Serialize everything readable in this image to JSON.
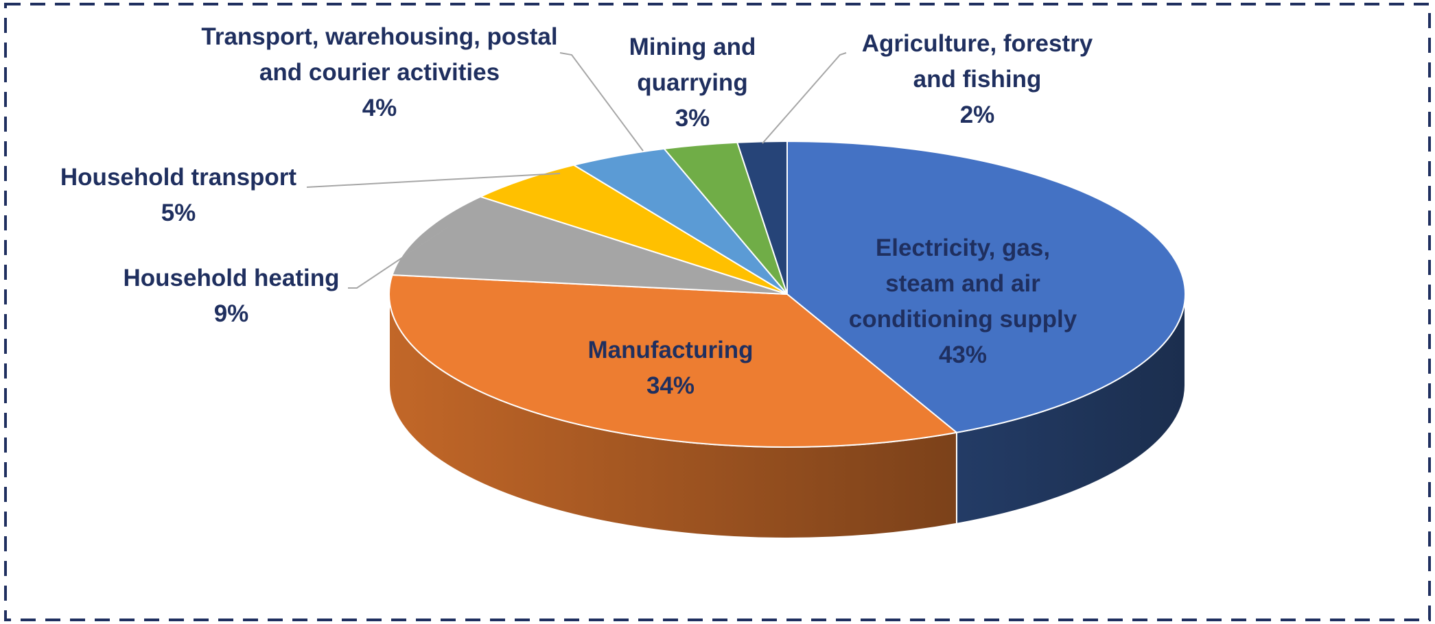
{
  "chart_data": {
    "type": "pie",
    "categories": [
      "Electricity, gas, steam and air conditioning supply",
      "Manufacturing",
      "Household heating",
      "Household transport",
      "Transport, warehousing, postal and courier activities",
      "Mining and quarrying",
      "Agriculture, forestry and fishing"
    ],
    "values": [
      43,
      34,
      9,
      5,
      4,
      3,
      2
    ],
    "value_labels": [
      "43%",
      "34%",
      "9%",
      "5%",
      "4%",
      "3%",
      "2%"
    ],
    "colors": [
      "#4472c4",
      "#ed7d31",
      "#a5a5a5",
      "#ffc000",
      "#5b9bd5",
      "#70ad47",
      "#264478"
    ]
  }
}
